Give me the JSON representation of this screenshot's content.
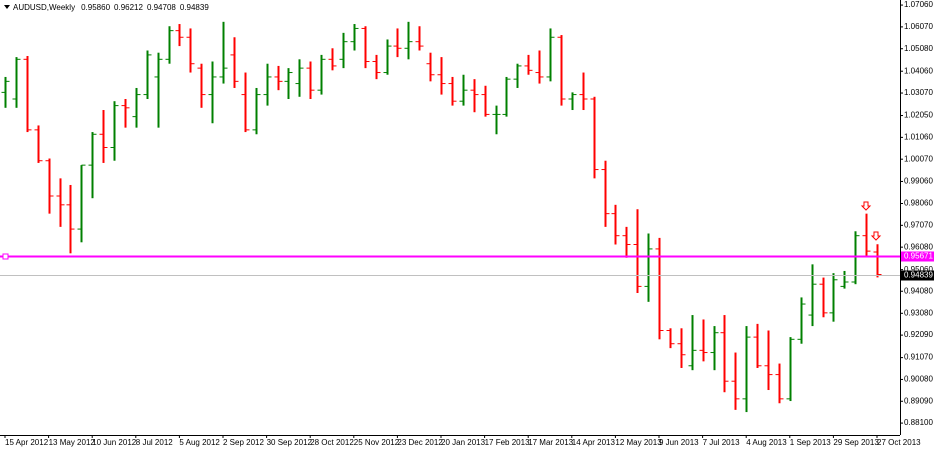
{
  "chart_data": {
    "type": "ohlc",
    "title": "AUDUSD,Weekly",
    "header_values": [
      "0.95860",
      "0.96212",
      "0.94708",
      "0.94839"
    ],
    "categories": [
      "15 Apr 2012",
      null,
      null,
      null,
      "13 May 2012",
      null,
      null,
      null,
      "10 Jun 2012",
      null,
      null,
      null,
      "8 Jul 2012",
      null,
      null,
      null,
      "5 Aug 2012",
      null,
      null,
      null,
      "2 Sep 2012",
      null,
      null,
      null,
      "30 Sep 2012",
      null,
      null,
      null,
      "28 Oct 2012",
      null,
      null,
      null,
      "25 Nov 2012",
      null,
      null,
      null,
      "23 Dec 2012",
      null,
      null,
      null,
      "20 Jan 2013",
      null,
      null,
      null,
      "17 Feb 2013",
      null,
      null,
      null,
      "17 Mar 2013",
      null,
      null,
      null,
      "14 Apr 2013",
      null,
      null,
      null,
      "12 May 2013",
      null,
      null,
      null,
      "9 Jun 2013",
      null,
      null,
      null,
      "7 Jul 2013",
      null,
      null,
      null,
      "4 Aug 2013",
      null,
      null,
      null,
      "1 Sep 2013",
      null,
      null,
      null,
      "29 Sep 2013",
      null,
      null,
      null,
      "27 Oct 2013"
    ],
    "open": [
      1.031,
      1.028,
      1.046,
      1.014,
      1.0,
      0.984,
      0.98,
      0.969,
      0.998,
      1.012,
      1.006,
      1.025,
      1.02,
      1.03,
      1.038,
      1.046,
      1.059,
      1.056,
      1.042,
      1.03,
      1.038,
      1.048,
      1.03,
      1.014,
      1.03,
      1.038,
      1.036,
      1.035,
      1.042,
      1.032,
      1.046,
      1.046,
      1.054,
      1.06,
      1.045,
      1.04,
      1.052,
      1.051,
      1.054,
      1.044,
      1.039,
      1.035,
      1.027,
      1.032,
      1.03,
      1.021,
      1.021,
      1.037,
      1.043,
      1.04,
      1.038,
      1.056,
      1.028,
      1.03,
      1.028,
      0.996,
      0.976,
      0.966,
      0.962,
      0.943,
      0.96,
      0.923,
      0.917,
      0.907,
      0.914,
      0.913,
      0.922,
      0.9,
      0.892,
      0.92,
      0.907,
      0.903,
      0.892,
      0.919,
      0.93,
      0.944,
      0.931,
      0.943,
      0.945,
      0.966,
      0.9586
    ],
    "high": [
      1.038,
      1.047,
      1.0475,
      1.016,
      1.001,
      0.992,
      0.989,
      0.998,
      1.013,
      1.023,
      1.027,
      1.028,
      1.033,
      1.05,
      1.049,
      1.061,
      1.062,
      1.06,
      1.044,
      1.045,
      1.063,
      1.056,
      1.04,
      1.033,
      1.044,
      1.043,
      1.042,
      1.046,
      1.045,
      1.048,
      1.051,
      1.058,
      1.062,
      1.061,
      1.048,
      1.055,
      1.06,
      1.063,
      1.061,
      1.049,
      1.047,
      1.038,
      1.039,
      1.037,
      1.034,
      1.025,
      1.038,
      1.044,
      1.048,
      1.05,
      1.06,
      1.057,
      1.031,
      1.04,
      1.029,
      1.0,
      0.98,
      0.97,
      0.978,
      0.967,
      0.965,
      0.924,
      0.924,
      0.93,
      0.928,
      0.925,
      0.93,
      0.913,
      0.925,
      0.926,
      0.923,
      0.908,
      0.92,
      0.938,
      0.953,
      0.947,
      0.949,
      0.95,
      0.968,
      0.976,
      0.96212
    ],
    "low": [
      1.024,
      1.024,
      1.013,
      0.999,
      0.976,
      0.97,
      0.958,
      0.963,
      0.983,
      0.999,
      1.0,
      1.015,
      1.015,
      1.028,
      1.015,
      1.044,
      1.052,
      1.04,
      1.024,
      1.017,
      1.035,
      1.033,
      1.013,
      1.012,
      1.025,
      1.032,
      1.028,
      1.029,
      1.028,
      1.03,
      1.041,
      1.042,
      1.05,
      1.042,
      1.037,
      1.039,
      1.047,
      1.046,
      1.05,
      1.036,
      1.03,
      1.025,
      1.025,
      1.022,
      1.02,
      1.012,
      1.02,
      1.033,
      1.039,
      1.035,
      1.036,
      1.025,
      1.023,
      1.023,
      0.992,
      0.97,
      0.962,
      0.956,
      0.94,
      0.936,
      0.919,
      0.915,
      0.906,
      0.905,
      0.909,
      0.905,
      0.895,
      0.887,
      0.886,
      0.906,
      0.896,
      0.89,
      0.891,
      0.917,
      0.925,
      0.929,
      0.927,
      0.942,
      0.944,
      0.957,
      0.94708
    ],
    "close": [
      1.036,
      1.046,
      1.014,
      1.0,
      0.984,
      0.98,
      0.969,
      0.998,
      1.012,
      1.006,
      1.025,
      1.024,
      1.03,
      1.048,
      1.046,
      1.059,
      1.056,
      1.044,
      1.03,
      1.038,
      1.042,
      1.036,
      1.014,
      1.03,
      1.038,
      1.036,
      1.04,
      1.042,
      1.032,
      1.046,
      1.043,
      1.054,
      1.06,
      1.045,
      1.04,
      1.052,
      1.051,
      1.054,
      1.052,
      1.039,
      1.035,
      1.027,
      1.032,
      1.03,
      1.021,
      1.021,
      1.037,
      1.043,
      1.041,
      1.038,
      1.056,
      1.028,
      1.03,
      1.028,
      0.996,
      0.976,
      0.966,
      0.962,
      0.943,
      0.96,
      0.923,
      0.917,
      0.912,
      0.914,
      0.913,
      0.922,
      0.9,
      0.892,
      0.92,
      0.907,
      0.903,
      0.892,
      0.919,
      0.935,
      0.944,
      0.931,
      0.946,
      0.945,
      0.966,
      0.959,
      0.94839
    ],
    "up_color": "#008000",
    "down_color": "#ff0000",
    "ylim": [
      0.8756,
      1.0729
    ],
    "yticks": [
      {
        "value": 1.0706,
        "label": "1.07060"
      },
      {
        "value": 1.0607,
        "label": "1.06070"
      },
      {
        "value": 1.0508,
        "label": "1.05080"
      },
      {
        "value": 1.0406,
        "label": "1.04060"
      },
      {
        "value": 1.0307,
        "label": "1.03070"
      },
      {
        "value": 1.0205,
        "label": "1.02050"
      },
      {
        "value": 1.0106,
        "label": "1.01060"
      },
      {
        "value": 1.0007,
        "label": "1.00070"
      },
      {
        "value": 0.9906,
        "label": "0.99060"
      },
      {
        "value": 0.9806,
        "label": "0.98060"
      },
      {
        "value": 0.9707,
        "label": "0.97070"
      },
      {
        "value": 0.9608,
        "label": "0.96080"
      },
      {
        "value": 0.9506,
        "label": "0.95060"
      },
      {
        "value": 0.9408,
        "label": "0.94080"
      },
      {
        "value": 0.9308,
        "label": "0.93080"
      },
      {
        "value": 0.9209,
        "label": "0.92090"
      },
      {
        "value": 0.9107,
        "label": "0.91070"
      },
      {
        "value": 0.9008,
        "label": "0.90080"
      },
      {
        "value": 0.8909,
        "label": "0.89090"
      },
      {
        "value": 0.881,
        "label": "0.88100"
      }
    ],
    "hlines": [
      {
        "value": 0.95671,
        "color": "#ff00ff"
      },
      {
        "value": 0.94839,
        "color": "#c0c0c0"
      }
    ]
  }
}
